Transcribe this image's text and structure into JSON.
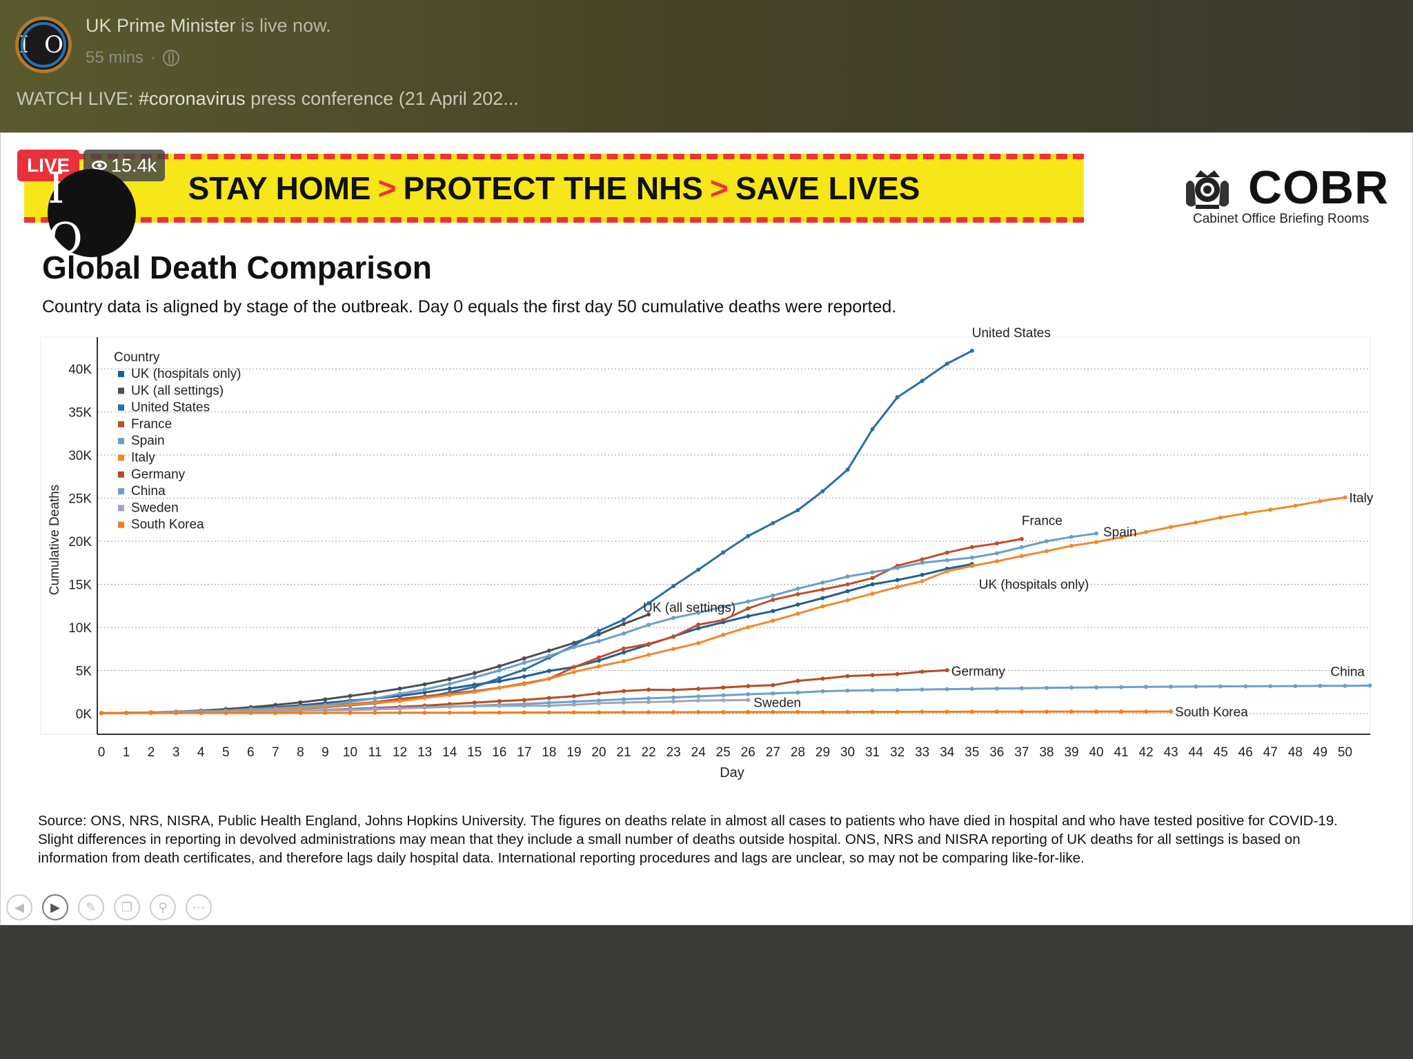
{
  "post": {
    "poster_name": "UK Prime Minister",
    "status_text": "is live now.",
    "time": "55 mins",
    "separator": "·",
    "text_prefix": "WATCH LIVE: ",
    "hashtag": "#coronavirus",
    "text_suffix": " press conference (21 April 202...",
    "avatar_text": "I O"
  },
  "video": {
    "live_label": "LIVE",
    "viewers": "15.4k",
    "channel_logo_text": "I O"
  },
  "banner": {
    "part1": "STAY HOME",
    "part2": "PROTECT THE NHS",
    "part3": "SAVE LIVES",
    "chevron": ">"
  },
  "cobr": {
    "word": "COBR",
    "subtitle": "Cabinet Office Briefing Rooms"
  },
  "slide": {
    "title": "Global Death Comparison",
    "subtitle": "Country data is aligned by stage of the outbreak. Day 0 equals the first day 50 cumulative deaths were reported.",
    "source": "Source: ONS, NRS, NISRA, Public Health England, Johns Hopkins University. The figures on deaths relate in almost all cases to patients who have died in hospital and who have tested positive for COVID-19. Slight differences in reporting in devolved administrations may mean that they include a small number of deaths outside hospital. ONS, NRS and NISRA reporting of UK deaths for all settings is based on information from death certificates, and therefore lags daily hospital data. International reporting procedures and lags are unclear, so may not be comparing like-for-like."
  },
  "controls": [
    "prev-icon",
    "play-icon",
    "pen-icon",
    "copy-icon",
    "zoom-icon",
    "more-icon"
  ],
  "chart_data": {
    "type": "line",
    "xlabel": "Day",
    "ylabel": "Cumulative Deaths",
    "xlim": [
      0,
      51
    ],
    "ylim": [
      0,
      42000
    ],
    "x_ticks": [
      0,
      1,
      2,
      3,
      4,
      5,
      6,
      7,
      8,
      9,
      10,
      11,
      12,
      13,
      14,
      15,
      16,
      17,
      18,
      19,
      20,
      21,
      22,
      23,
      24,
      25,
      26,
      27,
      28,
      29,
      30,
      31,
      32,
      33,
      34,
      35,
      36,
      37,
      38,
      39,
      40,
      41,
      42,
      43,
      44,
      45,
      46,
      47,
      48,
      49,
      50
    ],
    "y_ticks": [
      0,
      5000,
      10000,
      15000,
      20000,
      25000,
      30000,
      35000,
      40000
    ],
    "y_tick_labels": [
      "0K",
      "5K",
      "10K",
      "15K",
      "20K",
      "25K",
      "30K",
      "35K",
      "40K"
    ],
    "grid": "horizontal dotted",
    "legend_title": "Country",
    "legend_position": "top-left",
    "series": [
      {
        "name": "UK (hospitals only)",
        "color": "#1f5f96",
        "end_label": "UK (hospitals only)",
        "values": [
          53,
          60,
          110,
          180,
          290,
          430,
          580,
          740,
          960,
          1230,
          1500,
          1750,
          2050,
          2450,
          2900,
          3350,
          3750,
          4300,
          4950,
          5400,
          6150,
          7100,
          8000,
          8950,
          9900,
          10600,
          11300,
          11900,
          12650,
          13400,
          14200,
          15000,
          15500,
          16100,
          16800,
          17350
        ]
      },
      {
        "name": "UK (all settings)",
        "color": "#4d4d57",
        "end_label": "UK (all settings)",
        "values": [
          60,
          80,
          140,
          220,
          350,
          520,
          740,
          1000,
          1300,
          1650,
          2050,
          2450,
          2900,
          3400,
          4000,
          4700,
          5500,
          6400,
          7300,
          8200,
          9200,
          10400,
          11500
        ]
      },
      {
        "name": "United States",
        "color": "#2a6ea8",
        "end_label": "United States",
        "values": [
          60,
          85,
          110,
          150,
          210,
          280,
          360,
          460,
          590,
          750,
          960,
          1200,
          1500,
          1900,
          2450,
          3100,
          4100,
          5100,
          6500,
          7900,
          9600,
          10900,
          12800,
          14800,
          16700,
          18700,
          20600,
          22100,
          23600,
          25800,
          28300,
          33000,
          36700,
          38600,
          40600,
          42100
        ]
      },
      {
        "name": "France",
        "color": "#c0502a",
        "end_label": "France",
        "values": [
          61,
          91,
          120,
          175,
          245,
          330,
          410,
          500,
          670,
          860,
          1100,
          1330,
          1700,
          2000,
          2320,
          2600,
          3000,
          3500,
          4040,
          5380,
          6510,
          7550,
          8080,
          8910,
          10320,
          10860,
          12200,
          13200,
          13850,
          14400,
          14990,
          15730,
          17150,
          17900,
          18680,
          19320,
          19740,
          20270
        ]
      },
      {
        "name": "Spain",
        "color": "#6a9fcc",
        "end_label": "Spain",
        "values": [
          55,
          85,
          135,
          195,
          290,
          340,
          530,
          620,
          800,
          1000,
          1380,
          1750,
          2300,
          2800,
          3450,
          4200,
          5000,
          5900,
          6700,
          7700,
          8400,
          9300,
          10300,
          11100,
          11700,
          12400,
          13000,
          13700,
          14500,
          15200,
          15900,
          16400,
          16900,
          17500,
          17800,
          18100,
          18600,
          19300,
          20000,
          20500,
          20900
        ]
      },
      {
        "name": "Italy",
        "color": "#ee8a2e",
        "end_label": "Italy",
        "values": [
          52,
          79,
          107,
          148,
          197,
          233,
          366,
          463,
          631,
          827,
          1016,
          1266,
          1441,
          1809,
          2158,
          2503,
          2978,
          3405,
          4032,
          4825,
          5476,
          6077,
          6820,
          7503,
          8165,
          9134,
          10023,
          10779,
          11591,
          12428,
          13155,
          13915,
          14681,
          15362,
          16523,
          17127,
          17669,
          18279,
          18849,
          19468,
          19899,
          20465,
          21067,
          21645,
          22170,
          22745,
          23227,
          23660,
          24114,
          24648,
          25085
        ]
      },
      {
        "name": "Germany",
        "color": "#b44e22",
        "end_label": "Germany",
        "values": [
          55,
          68,
          86,
          94,
          123,
          157,
          206,
          267,
          342,
          433,
          533,
          645,
          775,
          920,
          1107,
          1275,
          1444,
          1584,
          1810,
          2016,
          2349,
          2607,
          2767,
          2736,
          2871,
          3022,
          3194,
          3294,
          3804,
          4052,
          4352,
          4459,
          4586,
          4862,
          5033
        ]
      },
      {
        "name": "China",
        "color": "#6b9fd0",
        "end_label": "China",
        "values": [
          56,
          81,
          106,
          132,
          170,
          213,
          259,
          304,
          361,
          425,
          490,
          563,
          637,
          722,
          811,
          908,
          1016,
          1113,
          1259,
          1380,
          1523,
          1665,
          1770,
          1868,
          2004,
          2118,
          2236,
          2345,
          2442,
          2592,
          2663,
          2715,
          2744,
          2788,
          2835,
          2870,
          2912,
          2943,
          2981,
          3012,
          3042,
          3070,
          3097,
          3119,
          3136,
          3158,
          3169,
          3176,
          3189,
          3213,
          3226,
          3246
        ]
      },
      {
        "name": "Sweden",
        "color": "#a0a5b8",
        "end_label": "Sweden",
        "values": [
          62,
          77,
          105,
          110,
          146,
          180,
          239,
          282,
          333,
          373,
          401,
          477,
          591,
          687,
          793,
          870,
          887,
          899,
          919,
          1033,
          1203,
          1280,
          1333,
          1400,
          1511,
          1540,
          1580
        ]
      },
      {
        "name": "South Korea",
        "color": "#ef7d1e",
        "end_label": "South Korea",
        "values": [
          51,
          53,
          54,
          60,
          66,
          66,
          72,
          75,
          75,
          81,
          84,
          91,
          94,
          102,
          104,
          111,
          120,
          126,
          131,
          139,
          144,
          152,
          158,
          162,
          165,
          169,
          174,
          177,
          183,
          186,
          192,
          200,
          204,
          208,
          211,
          214,
          217,
          222,
          225,
          229,
          230,
          232,
          234,
          236
        ]
      }
    ]
  }
}
